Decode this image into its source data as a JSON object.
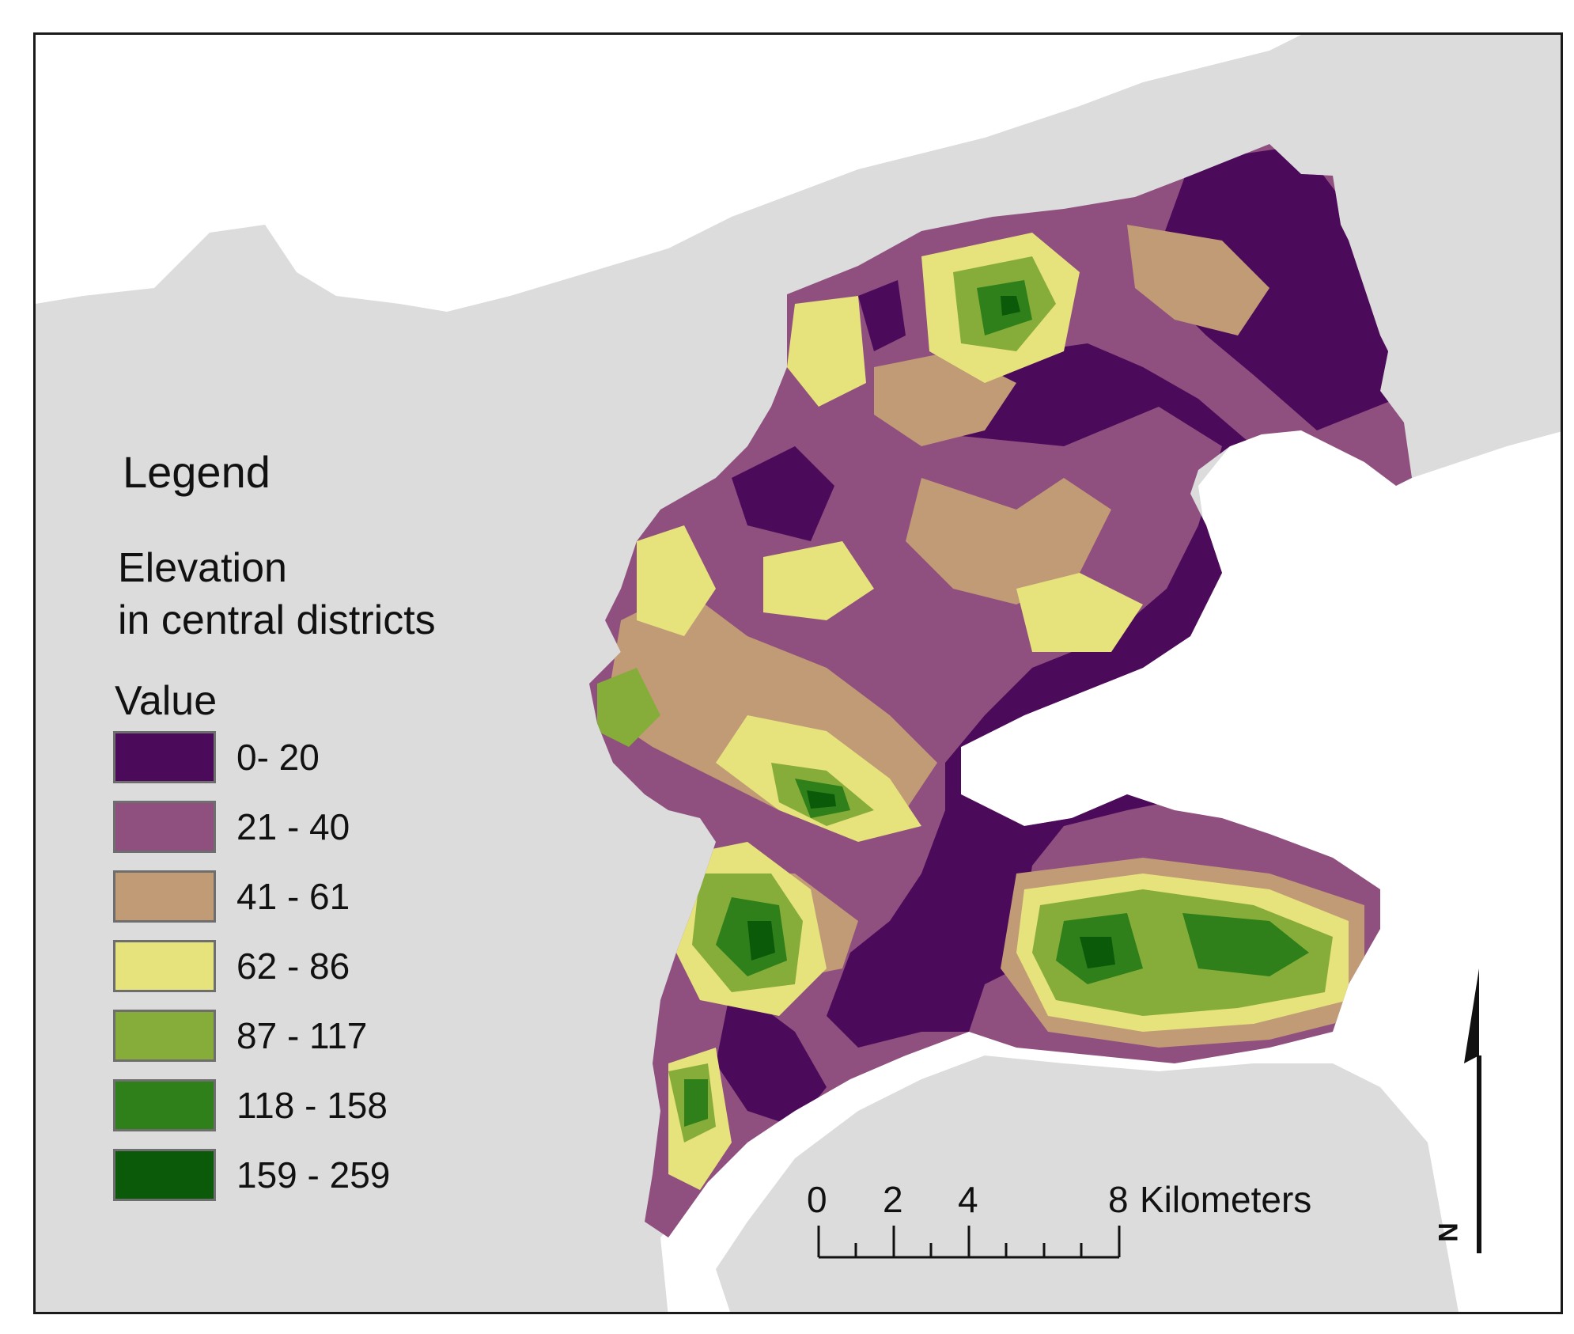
{
  "legend": {
    "title": "Legend",
    "layer_line1": "Elevation",
    "layer_line2": "in central districts",
    "field": "Value",
    "classes": [
      {
        "label": "0- 20",
        "color": "#4b0a5a"
      },
      {
        "label": "21 - 40",
        "color": "#8f4f7f"
      },
      {
        "label": "41 - 61",
        "color": "#c19a76"
      },
      {
        "label": "62 - 86",
        "color": "#e7e37c"
      },
      {
        "label": "87 - 117",
        "color": "#86ad39"
      },
      {
        "label": "118 - 158",
        "color": "#2f7f1b"
      },
      {
        "label": "159 - 259",
        "color": "#0b5a0a"
      }
    ]
  },
  "scale_bar": {
    "labels": [
      "0",
      "2",
      "4",
      "8"
    ],
    "unit": "Kilometers"
  },
  "north_arrow": {
    "letter": "N"
  },
  "colors": {
    "background_land": "#dcdcdc",
    "water": "#ffffff",
    "frame": "#1a1a1a"
  }
}
